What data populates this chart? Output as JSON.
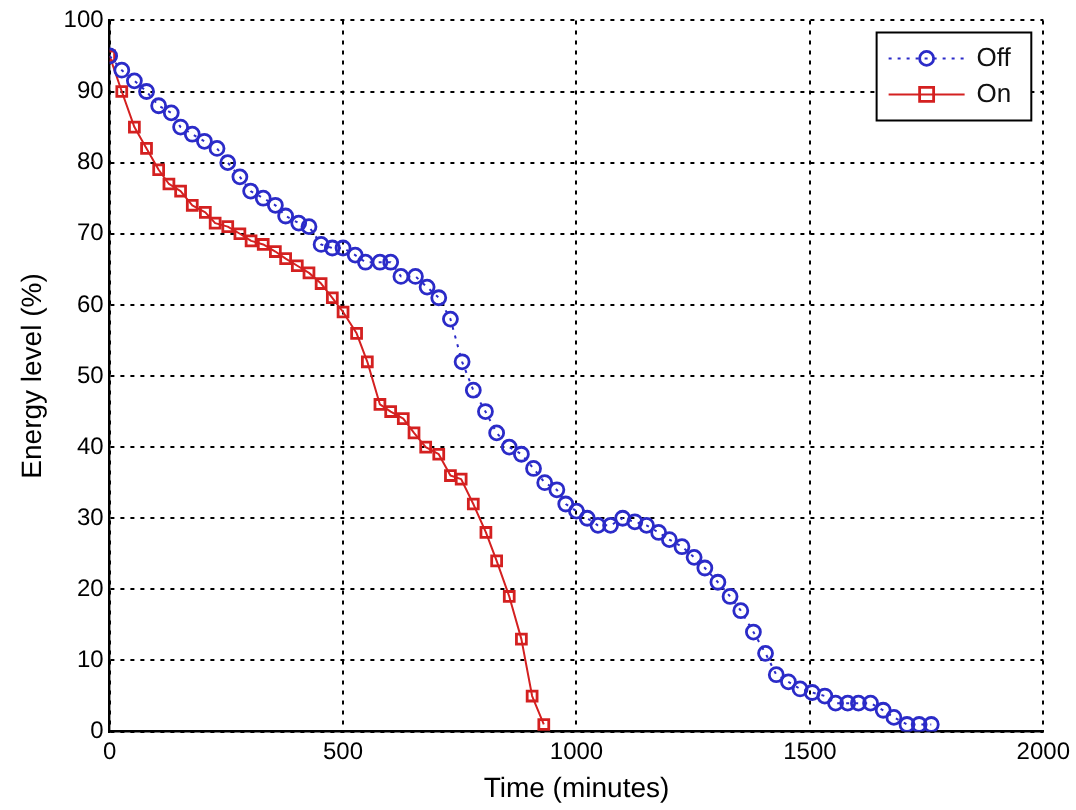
{
  "chart_data": {
    "type": "line",
    "xlabel": "Time (minutes)",
    "ylabel": "Energy level (%)",
    "xlim": [
      0,
      2000
    ],
    "xticks": [
      0,
      500,
      1000,
      1500,
      2000
    ],
    "ylim": [
      0,
      100
    ],
    "yticks": [
      0,
      10,
      20,
      30,
      40,
      50,
      60,
      70,
      80,
      90,
      100
    ],
    "grid": true,
    "legend": "top right",
    "series": [
      {
        "name": "Off",
        "color": "#2b2bc8",
        "marker": "circle",
        "line_style": "dotted",
        "x": [
          0,
          26,
          53,
          79,
          105,
          132,
          152,
          177,
          203,
          230,
          253,
          279,
          302,
          329,
          355,
          377,
          405,
          427,
          453,
          477,
          500,
          526,
          548,
          579,
          602,
          624,
          655,
          680,
          705,
          730,
          755,
          779,
          805,
          829,
          856,
          882,
          908,
          932,
          958,
          977,
          1000,
          1023,
          1046,
          1073,
          1099,
          1125,
          1150,
          1176,
          1199,
          1226,
          1252,
          1275,
          1303,
          1329,
          1352,
          1379,
          1405,
          1428,
          1454,
          1479,
          1505,
          1532,
          1555,
          1581,
          1604,
          1630,
          1657,
          1680,
          1708,
          1734,
          1760
        ],
        "values": [
          95,
          93,
          91.5,
          90,
          88,
          87,
          85,
          84,
          83,
          82,
          80,
          78,
          76,
          75,
          74,
          72.5,
          71.5,
          71,
          68.5,
          68,
          68,
          67,
          66,
          66,
          66,
          64,
          64,
          62.5,
          61,
          58,
          52,
          48,
          45,
          42,
          40,
          39,
          37,
          35,
          34,
          32,
          31,
          30,
          29,
          29,
          30,
          29.5,
          29,
          28,
          27,
          26,
          24.5,
          23,
          21,
          19,
          17,
          14,
          11,
          8,
          7,
          6,
          5.5,
          5,
          4,
          4,
          4,
          4,
          3,
          2,
          1,
          1,
          1
        ]
      },
      {
        "name": "On",
        "color": "#d42020",
        "marker": "square",
        "line_style": "solid",
        "x": [
          0,
          26,
          53,
          79,
          105,
          127,
          152,
          177,
          205,
          226,
          253,
          279,
          303,
          329,
          355,
          377,
          402,
          427,
          453,
          477,
          500,
          529,
          552,
          579,
          602,
          629,
          652,
          677,
          705,
          730,
          753,
          779,
          806,
          829,
          856,
          882,
          905,
          930
        ],
        "values": [
          95,
          90,
          85,
          82,
          79,
          77,
          76,
          74,
          73,
          71.5,
          71,
          70,
          69,
          68.5,
          67.5,
          66.5,
          65.5,
          64.5,
          63,
          61,
          59,
          56,
          52,
          46,
          45,
          44,
          42,
          40,
          39,
          36,
          35.5,
          32,
          28,
          24,
          19,
          13,
          5,
          1
        ]
      }
    ]
  }
}
